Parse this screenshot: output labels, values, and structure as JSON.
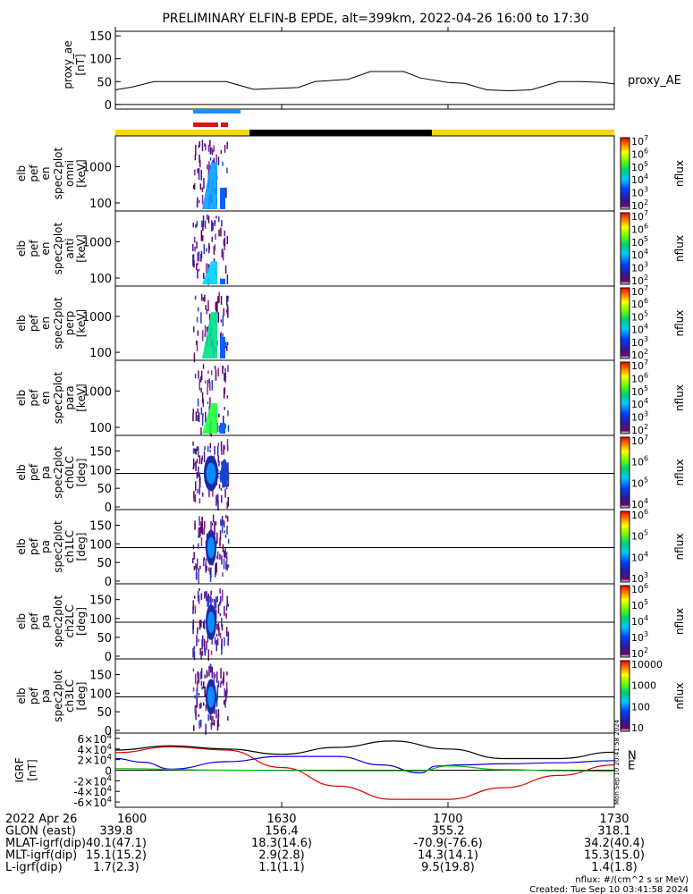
{
  "title": "PRELIMINARY ELFIN-B EPDE, alt=399km, 2022-04-26 16:00 to 17:30",
  "chart_data": [
    {
      "type": "line",
      "name": "proxy_ae",
      "ylabel": [
        "proxy_ae",
        "[nT]"
      ],
      "series_label": "proxy_AE",
      "ylim": [
        -10,
        160
      ],
      "yticks": [
        "0",
        "50",
        "100",
        "150"
      ],
      "x": [
        0,
        3,
        7,
        20,
        25,
        33,
        36,
        42,
        46,
        52,
        55,
        60,
        63,
        67,
        71,
        75,
        80,
        84,
        88,
        90
      ],
      "y": [
        32,
        38,
        50,
        50,
        33,
        37,
        50,
        55,
        72,
        72,
        58,
        48,
        46,
        32,
        30,
        32,
        50,
        50,
        48,
        45
      ]
    },
    {
      "type": "heatmap",
      "name": "en_omni",
      "ylabel": [
        "elb",
        "pef",
        "en",
        "spec2plot",
        "omni",
        "[keV]"
      ],
      "yticks": [
        "100",
        "1000"
      ],
      "colorbar": {
        "label": "nflux",
        "ticks": [
          "10^2",
          "10^3",
          "10^4",
          "10^5",
          "10^6",
          "10^7"
        ]
      }
    },
    {
      "type": "heatmap",
      "name": "en_anti",
      "ylabel": [
        "elb",
        "pef",
        "en",
        "spec2plot",
        "anti",
        "[keV]"
      ],
      "yticks": [
        "100",
        "1000"
      ],
      "colorbar": {
        "label": "nflux",
        "ticks": [
          "10^2",
          "10^3",
          "10^4",
          "10^5",
          "10^6",
          "10^7"
        ]
      }
    },
    {
      "type": "heatmap",
      "name": "en_perp",
      "ylabel": [
        "elb",
        "pef",
        "en",
        "spec2plot",
        "perp",
        "[keV]"
      ],
      "yticks": [
        "100",
        "1000"
      ],
      "colorbar": {
        "label": "nflux",
        "ticks": [
          "10^2",
          "10^3",
          "10^4",
          "10^5",
          "10^6",
          "10^7"
        ]
      }
    },
    {
      "type": "heatmap",
      "name": "en_para",
      "ylabel": [
        "elb",
        "pef",
        "en",
        "spec2plot",
        "para",
        "[keV]"
      ],
      "yticks": [
        "100",
        "1000"
      ],
      "colorbar": {
        "label": "nflux",
        "ticks": [
          "10^2",
          "10^3",
          "10^4",
          "10^5",
          "10^6",
          "10^7"
        ]
      }
    },
    {
      "type": "heatmap",
      "name": "pa_ch0LC",
      "ylabel": [
        "elb",
        "pef",
        "pa",
        "spec2plot",
        "ch0LC",
        "[deg]"
      ],
      "yticks": [
        "0",
        "50",
        "100",
        "150"
      ],
      "colorbar": {
        "label": "nflux",
        "ticks": [
          "10^4",
          "10^5",
          "10^6",
          "10^7"
        ]
      }
    },
    {
      "type": "heatmap",
      "name": "pa_ch1LC",
      "ylabel": [
        "elb",
        "pef",
        "pa",
        "spec2plot",
        "ch1LC",
        "[deg]"
      ],
      "yticks": [
        "0",
        "50",
        "100",
        "150"
      ],
      "colorbar": {
        "label": "nflux",
        "ticks": [
          "10^3",
          "10^4",
          "10^5",
          "10^6"
        ]
      }
    },
    {
      "type": "heatmap",
      "name": "pa_ch2LC",
      "ylabel": [
        "elb",
        "pef",
        "pa",
        "spec2plot",
        "ch2LC",
        "[deg]"
      ],
      "yticks": [
        "0",
        "50",
        "100",
        "150"
      ],
      "colorbar": {
        "label": "nflux",
        "ticks": [
          "10^2",
          "10^3",
          "10^4",
          "10^5",
          "10^6"
        ]
      }
    },
    {
      "type": "heatmap",
      "name": "pa_ch3LC",
      "ylabel": [
        "elb",
        "pef",
        "pa",
        "spec2plot",
        "ch3LC",
        "[deg]"
      ],
      "yticks": [
        "0",
        "50",
        "100",
        "150"
      ],
      "colorbar": {
        "label": "nflux",
        "ticks": [
          "10",
          "100",
          "1000",
          "10000"
        ]
      }
    },
    {
      "type": "line",
      "name": "igrf",
      "ylabel": [
        "IGRF",
        "[nT]"
      ],
      "ylim": [
        -70000,
        70000
      ],
      "yticks": [
        "-6×10^4",
        "-4×10^4",
        "-2×10^4",
        "0",
        "2×10^4",
        "4×10^4",
        "6×10^4"
      ],
      "side_stamp": "Mon Sep 10 20:41:58 2024",
      "series": [
        {
          "name": "N",
          "color": "#e00000",
          "x": [
            0,
            10,
            20,
            30,
            40,
            50,
            60,
            70,
            80,
            90
          ],
          "y": [
            33000,
            44000,
            38000,
            5000,
            -30000,
            -55000,
            -55000,
            -33000,
            -10000,
            10000
          ]
        },
        {
          "name": "",
          "color": "#000000",
          "x": [
            0,
            10,
            20,
            30,
            40,
            50,
            60,
            70,
            80,
            90
          ],
          "y": [
            38000,
            46000,
            40000,
            30000,
            43000,
            55000,
            40000,
            22000,
            22000,
            34000
          ]
        },
        {
          "name": "",
          "color": "#0000e0",
          "x": [
            0,
            5,
            10,
            20,
            30,
            40,
            48,
            55,
            58,
            62,
            70,
            80,
            90
          ],
          "y": [
            22000,
            15000,
            2000,
            16000,
            26000,
            26000,
            10000,
            -5000,
            8000,
            10000,
            12000,
            14000,
            18000
          ]
        },
        {
          "name": "E",
          "color": "#00c000",
          "x": [
            0,
            20,
            40,
            55,
            60,
            70,
            80,
            90
          ],
          "y": [
            3000,
            0,
            -1000,
            -1000,
            8000,
            1000,
            -1000,
            -2000
          ]
        }
      ]
    }
  ],
  "xaxis": {
    "ticks": [
      "1600",
      "1630",
      "1700",
      "1730"
    ],
    "date": "2022 Apr 26",
    "rows": [
      {
        "label": "GLON (east)",
        "values": [
          "339.8",
          "156.4",
          "355.2",
          "318.1"
        ]
      },
      {
        "label": "MLAT-igrf(dip)",
        "values": [
          "40.1(47.1)",
          "18.3(14.6)",
          "-70.9(-76.6)",
          "34.2(40.4)"
        ]
      },
      {
        "label": "MLT-igrf(dip)",
        "values": [
          "15.1(15.2)",
          "2.9(2.8)",
          "14.3(14.1)",
          "15.3(15.0)"
        ]
      },
      {
        "label": "L-igrf(dip)",
        "values": [
          "1.7(2.3)",
          "1.1(1.1)",
          "9.5(19.8)",
          "1.4(1.8)"
        ]
      }
    ]
  },
  "footer": {
    "units": "nflux: #/(cm^2 s sr MeV)",
    "created": "Created: Tue Sep 10 03:41:58 2024"
  },
  "colors": {
    "sunlit": "#f5d800",
    "eclipse": "#000000",
    "science_blue": "#1e8cff",
    "science_red": "#e01010"
  }
}
